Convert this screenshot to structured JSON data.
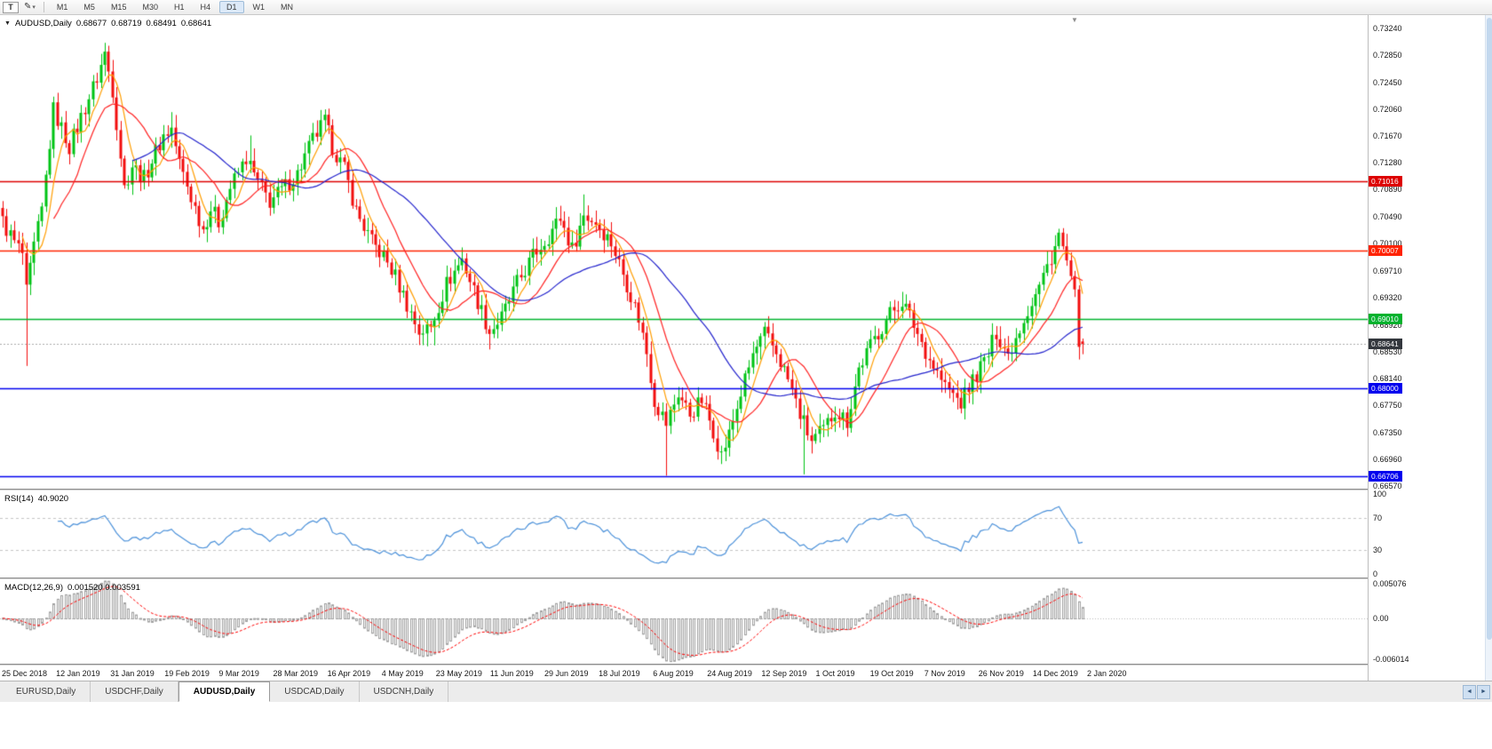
{
  "icons": {
    "collapse": "▼",
    "caret": "▾",
    "pencil": "✎",
    "shift": "▼",
    "scroll_left": "◄",
    "scroll_right": "►"
  },
  "toolbar": {
    "tool_button": "T",
    "timeframes": [
      "M1",
      "M5",
      "M15",
      "M30",
      "H1",
      "H4",
      "D1",
      "W1",
      "MN"
    ],
    "active_timeframe": "D1"
  },
  "chart_header": {
    "symbol_label": "AUDUSD,Daily",
    "open": "0.68677",
    "high": "0.68719",
    "low": "0.68491",
    "close": "0.68641"
  },
  "price_axis": {
    "ticks": [
      "0.73240",
      "0.72850",
      "0.72450",
      "0.72060",
      "0.71670",
      "0.71280",
      "0.70890",
      "0.70490",
      "0.70100",
      "0.69710",
      "0.69320",
      "0.68920",
      "0.68530",
      "0.68140",
      "0.67750",
      "0.67350",
      "0.66960",
      "0.66570"
    ],
    "current_price_badge": "0.68641",
    "current_badge_color": "#33373d"
  },
  "rsi": {
    "name": "RSI(14)",
    "value": "40.9020",
    "axis_labels": [
      "100",
      "70",
      "30",
      "0"
    ],
    "axis_values": [
      100,
      70,
      30,
      0
    ],
    "upper": 70,
    "lower": 30
  },
  "macd": {
    "name": "MACD(12,26,9)",
    "values": "0.001520 0.003591",
    "axis_labels": [
      "0.005076",
      "0.00",
      "-0.006014"
    ],
    "axis_values": [
      0.005076,
      0,
      -0.006014
    ],
    "max": 0.005076,
    "min": -0.006014
  },
  "date_axis": [
    "25 Dec 2018",
    "12 Jan 2019",
    "31 Jan 2019",
    "19 Feb 2019",
    "9 Mar 2019",
    "28 Mar 2019",
    "16 Apr 2019",
    "4 May 2019",
    "23 May 2019",
    "11 Jun 2019",
    "29 Jun 2019",
    "18 Jul 2019",
    "6 Aug 2019",
    "24 Aug 2019",
    "12 Sep 2019",
    "1 Oct 2019",
    "19 Oct 2019",
    "7 Nov 2019",
    "26 Nov 2019",
    "14 Dec 2019",
    "2 Jan 2020"
  ],
  "tabs": {
    "items": [
      "EURUSD,Daily",
      "USDCHF,Daily",
      "AUDUSD,Daily",
      "USDCAD,Daily",
      "USDCNH,Daily"
    ],
    "active": "AUDUSD,Daily"
  },
  "chart_data": {
    "type": "candlestick",
    "symbol": "AUDUSD",
    "timeframe": "Daily",
    "ohlc_current": {
      "open": 0.68677,
      "high": 0.68719,
      "low": 0.68491,
      "close": 0.68641
    },
    "last_candle": {
      "open": 0.68677,
      "high": 0.68719,
      "low": 0.68491,
      "close": 0.68641
    },
    "y_range": [
      0.6657,
      0.7324
    ],
    "candle_count": 276,
    "visible_range": {
      "first_label": "25 Dec 2018",
      "last_label": "2 Jan 2020"
    },
    "jitter": 0.0013,
    "wick": 0.0015,
    "close_waypoints": [
      [
        0,
        0.7042
      ],
      [
        3,
        0.7012
      ],
      [
        5,
        0.6995
      ],
      [
        6,
        0.6938
      ],
      [
        8,
        0.7005
      ],
      [
        10,
        0.7058
      ],
      [
        13,
        0.7205
      ],
      [
        17,
        0.7152
      ],
      [
        20,
        0.7195
      ],
      [
        24,
        0.7252
      ],
      [
        26,
        0.7288
      ],
      [
        28,
        0.7235
      ],
      [
        31,
        0.7092
      ],
      [
        33,
        0.7125
      ],
      [
        36,
        0.7105
      ],
      [
        38,
        0.7132
      ],
      [
        41,
        0.7168
      ],
      [
        43,
        0.7178
      ],
      [
        45,
        0.7128
      ],
      [
        48,
        0.7078
      ],
      [
        51,
        0.7032
      ],
      [
        53,
        0.7062
      ],
      [
        55,
        0.7042
      ],
      [
        58,
        0.7092
      ],
      [
        62,
        0.7135
      ],
      [
        65,
        0.7098
      ],
      [
        68,
        0.7072
      ],
      [
        71,
        0.7088
      ],
      [
        75,
        0.7112
      ],
      [
        79,
        0.7162
      ],
      [
        82,
        0.7188
      ],
      [
        84,
        0.7152
      ],
      [
        87,
        0.7118
      ],
      [
        90,
        0.7058
      ],
      [
        94,
        0.7012
      ],
      [
        97,
        0.6992
      ],
      [
        100,
        0.6962
      ],
      [
        103,
        0.6922
      ],
      [
        106,
        0.6882
      ],
      [
        109,
        0.6888
      ],
      [
        113,
        0.6952
      ],
      [
        117,
        0.6988
      ],
      [
        120,
        0.6942
      ],
      [
        124,
        0.6882
      ],
      [
        127,
        0.6902
      ],
      [
        131,
        0.6952
      ],
      [
        135,
        0.6992
      ],
      [
        139,
        0.7022
      ],
      [
        142,
        0.7048
      ],
      [
        145,
        0.7002
      ],
      [
        148,
        0.7052
      ],
      [
        151,
        0.7042
      ],
      [
        155,
        0.7012
      ],
      [
        159,
        0.6952
      ],
      [
        162,
        0.6902
      ],
      [
        164,
        0.6852
      ],
      [
        166,
        0.6782
      ],
      [
        169,
        0.6748
      ],
      [
        172,
        0.6792
      ],
      [
        175,
        0.6762
      ],
      [
        178,
        0.6782
      ],
      [
        181,
        0.6738
      ],
      [
        183,
        0.6702
      ],
      [
        185,
        0.6732
      ],
      [
        188,
        0.6792
      ],
      [
        191,
        0.6848
      ],
      [
        194,
        0.6878
      ],
      [
        197,
        0.6852
      ],
      [
        200,
        0.6812
      ],
      [
        203,
        0.6762
      ],
      [
        206,
        0.6722
      ],
      [
        209,
        0.6738
      ],
      [
        212,
        0.6768
      ],
      [
        215,
        0.6752
      ],
      [
        218,
        0.6828
      ],
      [
        222,
        0.6872
      ],
      [
        226,
        0.6908
      ],
      [
        229,
        0.6928
      ],
      [
        232,
        0.6892
      ],
      [
        236,
        0.6842
      ],
      [
        240,
        0.6802
      ],
      [
        244,
        0.6778
      ],
      [
        247,
        0.6812
      ],
      [
        251,
        0.6848
      ],
      [
        253,
        0.6882
      ],
      [
        256,
        0.6848
      ],
      [
        260,
        0.6902
      ],
      [
        264,
        0.6948
      ],
      [
        267,
        0.6992
      ],
      [
        269,
        0.7022
      ],
      [
        271,
        0.6983
      ],
      [
        272,
        0.6952
      ],
      [
        273,
        0.6932
      ],
      [
        274,
        0.6872
      ],
      [
        275,
        0.68641
      ]
    ],
    "spike_lows": {
      "6": 0.6832,
      "110": 0.6862,
      "124": 0.6856,
      "169": 0.6672,
      "183": 0.6689,
      "204": 0.6674,
      "245": 0.6754
    },
    "spike_highs": {
      "26": 0.7303,
      "43": 0.7202,
      "63": 0.7168,
      "82": 0.7206,
      "148": 0.7082,
      "194": 0.6896,
      "229": 0.694,
      "269": 0.7032
    },
    "horizontal_lines": [
      {
        "price": 0.71016,
        "label": "0.71016",
        "color": "#dd0000"
      },
      {
        "price": 0.70007,
        "label": "0.70007",
        "color": "#ff2200"
      },
      {
        "price": 0.6901,
        "label": "0.69010",
        "color": "#00b22d"
      },
      {
        "price": 0.68,
        "label": "0.68000",
        "color": "#0000ee"
      },
      {
        "price": 0.66706,
        "label": "0.66706",
        "color": "#0000ee"
      }
    ],
    "moving_averages": [
      {
        "period": 6,
        "color": "#ff9d00"
      },
      {
        "period": 14,
        "color": "#ff2222"
      },
      {
        "period": 34,
        "color": "#2222cc"
      }
    ],
    "rsi_period": 14,
    "macd_params": [
      12,
      26,
      9
    ],
    "colors": {
      "up": "#00c314",
      "down": "#f20c0c",
      "rsi": "#4a90d9",
      "macd_hist": "#a0a0a0",
      "macd_signal": "#ff0000",
      "current_line": "#ababab"
    }
  }
}
